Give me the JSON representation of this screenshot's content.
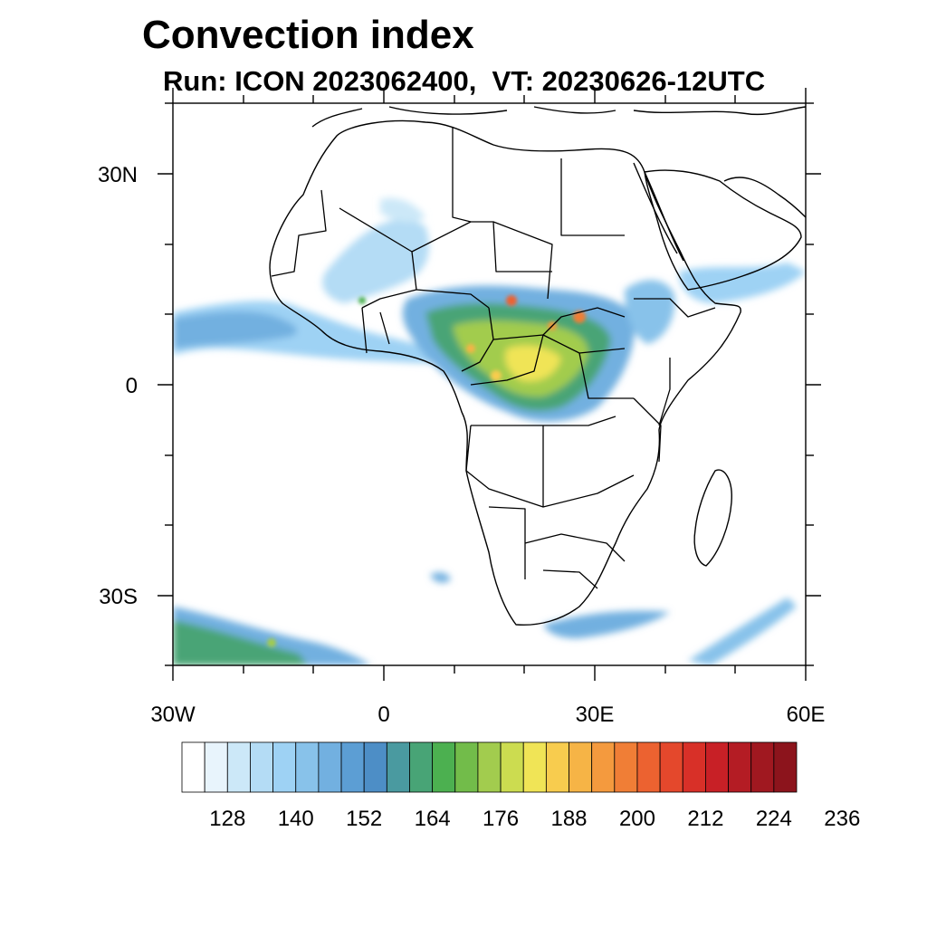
{
  "title": "Convection index",
  "subtitle": "Run: ICON 2023062400,  VT: 20230626-12UTC",
  "map": {
    "lat_labels": [
      "30N",
      "0",
      "30S"
    ],
    "lon_labels": [
      "30W",
      "0",
      "30E",
      "60E"
    ],
    "lon_range": [
      -30,
      60
    ],
    "lat_range": [
      -40,
      40
    ]
  },
  "colorbar": {
    "colors": [
      "#ffffff",
      "#e8f4fc",
      "#cce8f8",
      "#b4dcf5",
      "#9ed2f4",
      "#88c2ea",
      "#72b0e0",
      "#5c9ed4",
      "#4d8ec6",
      "#4a9aa0",
      "#48a476",
      "#4cb050",
      "#72bc4a",
      "#a2cc4e",
      "#ccdc50",
      "#f0e456",
      "#f8cc4e",
      "#f6b446",
      "#f49a3e",
      "#f07e36",
      "#ec6230",
      "#e4482c",
      "#d83028",
      "#c82026",
      "#b41c24",
      "#a01820",
      "#8c141c"
    ],
    "tick_labels": [
      "128",
      "140",
      "152",
      "164",
      "176",
      "188",
      "200",
      "212",
      "224",
      "236"
    ]
  },
  "icons": {
    "map": "africa-map"
  }
}
